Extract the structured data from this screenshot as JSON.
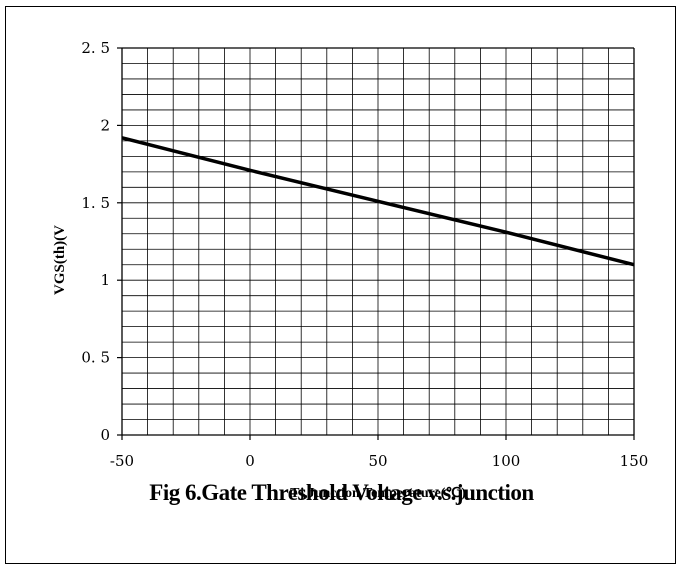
{
  "chart_data": {
    "type": "line",
    "title": "",
    "xlabel": "Tj,Junction Temperature(℃)",
    "ylabel": "VGS(th)(V",
    "xlim": [
      -50,
      150
    ],
    "ylim": [
      0,
      2.5
    ],
    "x_ticks": [
      -50,
      0,
      50,
      100,
      150
    ],
    "x_tick_labels": [
      "-50",
      "0",
      "50",
      "100",
      "150"
    ],
    "y_ticks": [
      0,
      0.5,
      1,
      1.5,
      2,
      2.5
    ],
    "y_tick_labels": [
      "0",
      "0. 5",
      "1",
      "1. 5",
      "2",
      "2. 5"
    ],
    "x_minor_step": 10,
    "y_minor_step": 0.1,
    "grid": true,
    "series": [
      {
        "x": [
          -50,
          0,
          50,
          100,
          150
        ],
        "y": [
          1.92,
          1.71,
          1.51,
          1.31,
          1.1
        ]
      }
    ],
    "colors": {
      "line": "#000000",
      "grid": "#000000"
    }
  },
  "caption": "Fig 6.Gate Threshold Voltage v.s.junction"
}
